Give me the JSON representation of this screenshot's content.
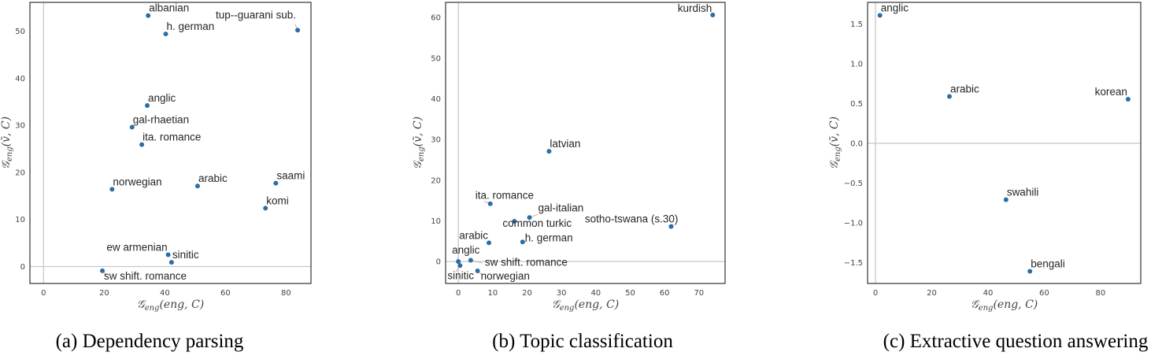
{
  "colors": {
    "point": "#2b6ea6",
    "frame": "#333333",
    "refline": "#c8c8c8",
    "connector": "#e8a0a0"
  },
  "chart_data": [
    {
      "type": "scatter",
      "caption": "(a) Dependency parsing",
      "xlabel": {
        "symbol": "𝒢",
        "sub": "eng",
        "args": "(eng, C)"
      },
      "ylabel": {
        "symbol": "𝒢",
        "sub": "eng",
        "args": "(v̄, C)"
      },
      "xlim": [
        -4.5,
        88.2
      ],
      "ylim": [
        -3.6,
        56.1
      ],
      "xticks": [
        0,
        20,
        40,
        60,
        80
      ],
      "yticks": [
        0,
        10,
        20,
        30,
        40,
        50
      ],
      "grid": false,
      "reference_lines": {
        "x": 0,
        "y": 0
      },
      "points": [
        {
          "label": "albanian",
          "x": 34.5,
          "y": 53.3
        },
        {
          "label": "h. german",
          "x": 40.3,
          "y": 49.4
        },
        {
          "label": "tup--guarani sub.",
          "x": 83.8,
          "y": 50.2
        },
        {
          "label": "anglic",
          "x": 34.2,
          "y": 34.2
        },
        {
          "label": "gal-rhaetian",
          "x": 29.2,
          "y": 29.6
        },
        {
          "label": "ita. romance",
          "x": 32.4,
          "y": 25.9
        },
        {
          "label": "norwegian",
          "x": 22.6,
          "y": 16.4
        },
        {
          "label": "arabic",
          "x": 50.8,
          "y": 17.1
        },
        {
          "label": "saami",
          "x": 76.6,
          "y": 17.7
        },
        {
          "label": "komi",
          "x": 73.2,
          "y": 12.4
        },
        {
          "label": "ew armenian",
          "x": 41.1,
          "y": 2.5
        },
        {
          "label": "sinitic",
          "x": 42.2,
          "y": 0.9
        },
        {
          "label": "sw shift. romance",
          "x": 19.4,
          "y": -0.9
        }
      ]
    },
    {
      "type": "scatter",
      "caption": "(b) Topic classification",
      "xlabel": {
        "symbol": "𝒢",
        "sub": "eng",
        "args": "(eng, C)"
      },
      "ylabel": {
        "symbol": "𝒢",
        "sub": "eng",
        "args": "(v̄, C)"
      },
      "xlim": [
        -3.7,
        77.6
      ],
      "ylim": [
        -5.4,
        63.7
      ],
      "xticks": [
        0,
        10,
        20,
        30,
        40,
        50,
        60,
        70
      ],
      "yticks": [
        0,
        10,
        20,
        30,
        40,
        50,
        60
      ],
      "grid": false,
      "reference_lines": {
        "x": 0,
        "y": 0
      },
      "points": [
        {
          "label": "kurdish",
          "x": 74.0,
          "y": 60.6
        },
        {
          "label": "latvian",
          "x": 26.4,
          "y": 27.1
        },
        {
          "label": "ita. romance",
          "x": 9.3,
          "y": 14.2
        },
        {
          "label": "gal-italian",
          "x": 20.7,
          "y": 10.8
        },
        {
          "label": "common turkic",
          "x": 16.3,
          "y": 9.9
        },
        {
          "label": "sotho-tswana (s.30)",
          "x": 61.9,
          "y": 8.6
        },
        {
          "label": "h. german",
          "x": 18.7,
          "y": 4.8
        },
        {
          "label": "arabic",
          "x": 8.9,
          "y": 4.6
        },
        {
          "label": "anglic",
          "x": 0.0,
          "y": 0.0
        },
        {
          "label": "sinitic",
          "x": 0.5,
          "y": -1.0
        },
        {
          "label": "sw shift. romance",
          "x": 3.6,
          "y": 0.3
        },
        {
          "label": "norwegian",
          "x": 5.6,
          "y": -2.3
        }
      ]
    },
    {
      "type": "scatter",
      "caption": "(c) Extractive question answering",
      "xlabel": {
        "symbol": "𝒢",
        "sub": "eng",
        "args": "(eng, C)"
      },
      "ylabel": {
        "symbol": "𝒢",
        "sub": "eng",
        "args": "(v̄, C)"
      },
      "xlim": [
        -2.8,
        94.3
      ],
      "ylim": [
        -1.764,
        1.774
      ],
      "xticks": [
        0,
        20,
        40,
        60,
        80
      ],
      "yticks": [
        -1.5,
        -1.0,
        -0.5,
        0.0,
        0.5,
        1.0,
        1.5
      ],
      "ytick_labels": [
        "−1.5",
        "−1.0",
        "−0.5",
        "0.0",
        "0.5",
        "1.0",
        "1.5"
      ],
      "grid": false,
      "reference_lines": {
        "x": 0,
        "y": 0
      },
      "points": [
        {
          "label": "anglic",
          "x": 1.6,
          "y": 1.61
        },
        {
          "label": "arabic",
          "x": 26.3,
          "y": 0.59
        },
        {
          "label": "korean",
          "x": 89.8,
          "y": 0.555
        },
        {
          "label": "swahili",
          "x": 46.4,
          "y": -0.71
        },
        {
          "label": "bengali",
          "x": 54.9,
          "y": -1.61
        }
      ]
    }
  ]
}
